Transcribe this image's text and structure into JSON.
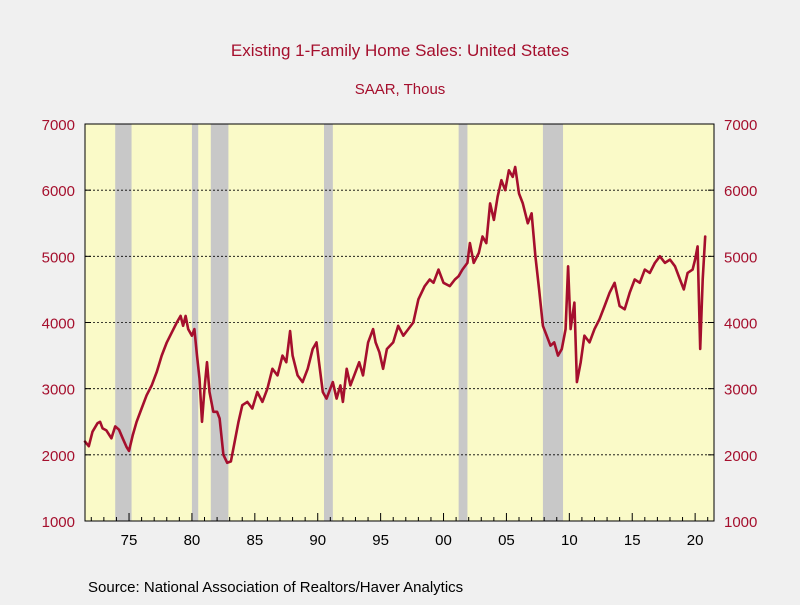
{
  "chart_data": {
    "type": "line",
    "title": "Existing 1-Family Home Sales: United States",
    "subtitle": "SAAR, Thous",
    "source": "Source:  National Association of Realtors/Haver Analytics",
    "xlim": [
      1971.5,
      2021.5
    ],
    "ylim": [
      1000,
      7000
    ],
    "x_ticks": [
      {
        "value": 1975,
        "label": "75"
      },
      {
        "value": 1980,
        "label": "80"
      },
      {
        "value": 1985,
        "label": "85"
      },
      {
        "value": 1990,
        "label": "90"
      },
      {
        "value": 1995,
        "label": "95"
      },
      {
        "value": 2000,
        "label": "00"
      },
      {
        "value": 2005,
        "label": "05"
      },
      {
        "value": 2010,
        "label": "10"
      },
      {
        "value": 2015,
        "label": "15"
      },
      {
        "value": 2020,
        "label": "20"
      }
    ],
    "y_ticks": [
      1000,
      2000,
      3000,
      4000,
      5000,
      6000,
      7000
    ],
    "y_axis_both_sides": true,
    "horizontal_grid": true,
    "grid_style": "dashed",
    "recession_shading": [
      [
        1973.9,
        1975.2
      ],
      [
        1980.0,
        1980.5
      ],
      [
        1981.5,
        1982.9
      ],
      [
        1990.5,
        1991.2
      ],
      [
        2001.2,
        2001.9
      ],
      [
        2007.9,
        2009.5
      ]
    ],
    "colors": {
      "line": "#a50f2d",
      "text": "#a50f2d",
      "plot_background": "#fafac8",
      "recession": "#c8c8c8",
      "page_background": "#f0f0f0"
    },
    "series": [
      {
        "points": [
          [
            1971.5,
            2200
          ],
          [
            1971.8,
            2130
          ],
          [
            1972.1,
            2350
          ],
          [
            1972.5,
            2480
          ],
          [
            1972.7,
            2500
          ],
          [
            1972.9,
            2400
          ],
          [
            1973.2,
            2370
          ],
          [
            1973.6,
            2250
          ],
          [
            1973.9,
            2430
          ],
          [
            1974.2,
            2380
          ],
          [
            1974.5,
            2250
          ],
          [
            1974.8,
            2120
          ],
          [
            1975.0,
            2060
          ],
          [
            1975.3,
            2300
          ],
          [
            1975.6,
            2500
          ],
          [
            1976.0,
            2700
          ],
          [
            1976.4,
            2900
          ],
          [
            1976.8,
            3050
          ],
          [
            1977.2,
            3250
          ],
          [
            1977.6,
            3500
          ],
          [
            1978.0,
            3700
          ],
          [
            1978.4,
            3850
          ],
          [
            1978.8,
            4000
          ],
          [
            1979.1,
            4100
          ],
          [
            1979.3,
            3950
          ],
          [
            1979.5,
            4100
          ],
          [
            1979.7,
            3900
          ],
          [
            1980.0,
            3800
          ],
          [
            1980.2,
            3900
          ],
          [
            1980.4,
            3500
          ],
          [
            1980.6,
            3150
          ],
          [
            1980.8,
            2500
          ],
          [
            1981.0,
            3000
          ],
          [
            1981.2,
            3400
          ],
          [
            1981.4,
            2950
          ],
          [
            1981.7,
            2650
          ],
          [
            1982.0,
            2650
          ],
          [
            1982.2,
            2550
          ],
          [
            1982.5,
            2000
          ],
          [
            1982.8,
            1880
          ],
          [
            1983.1,
            1900
          ],
          [
            1983.4,
            2200
          ],
          [
            1983.7,
            2500
          ],
          [
            1984.0,
            2750
          ],
          [
            1984.4,
            2800
          ],
          [
            1984.8,
            2700
          ],
          [
            1985.2,
            2950
          ],
          [
            1985.6,
            2800
          ],
          [
            1986.0,
            3000
          ],
          [
            1986.4,
            3300
          ],
          [
            1986.8,
            3200
          ],
          [
            1987.2,
            3500
          ],
          [
            1987.5,
            3400
          ],
          [
            1987.8,
            3870
          ],
          [
            1988.0,
            3500
          ],
          [
            1988.4,
            3200
          ],
          [
            1988.8,
            3100
          ],
          [
            1989.2,
            3300
          ],
          [
            1989.6,
            3600
          ],
          [
            1989.9,
            3700
          ],
          [
            1990.1,
            3400
          ],
          [
            1990.4,
            2950
          ],
          [
            1990.7,
            2850
          ],
          [
            1991.0,
            3000
          ],
          [
            1991.2,
            3100
          ],
          [
            1991.5,
            2850
          ],
          [
            1991.8,
            3050
          ],
          [
            1992.0,
            2800
          ],
          [
            1992.3,
            3300
          ],
          [
            1992.6,
            3050
          ],
          [
            1992.9,
            3200
          ],
          [
            1993.3,
            3400
          ],
          [
            1993.6,
            3200
          ],
          [
            1994.0,
            3700
          ],
          [
            1994.4,
            3900
          ],
          [
            1994.6,
            3700
          ],
          [
            1994.9,
            3550
          ],
          [
            1995.2,
            3300
          ],
          [
            1995.5,
            3600
          ],
          [
            1996.0,
            3700
          ],
          [
            1996.4,
            3950
          ],
          [
            1996.8,
            3800
          ],
          [
            1997.2,
            3900
          ],
          [
            1997.6,
            4000
          ],
          [
            1998.0,
            4350
          ],
          [
            1998.5,
            4550
          ],
          [
            1998.9,
            4650
          ],
          [
            1999.2,
            4600
          ],
          [
            1999.6,
            4800
          ],
          [
            2000.0,
            4600
          ],
          [
            2000.5,
            4550
          ],
          [
            2000.9,
            4650
          ],
          [
            2001.2,
            4700
          ],
          [
            2001.5,
            4800
          ],
          [
            2001.9,
            4900
          ],
          [
            2002.1,
            5200
          ],
          [
            2002.4,
            4900
          ],
          [
            2002.8,
            5050
          ],
          [
            2003.1,
            5300
          ],
          [
            2003.4,
            5200
          ],
          [
            2003.7,
            5800
          ],
          [
            2004.0,
            5550
          ],
          [
            2004.3,
            5900
          ],
          [
            2004.6,
            6150
          ],
          [
            2004.9,
            6000
          ],
          [
            2005.2,
            6300
          ],
          [
            2005.5,
            6200
          ],
          [
            2005.7,
            6350
          ],
          [
            2006.0,
            5950
          ],
          [
            2006.3,
            5800
          ],
          [
            2006.7,
            5500
          ],
          [
            2007.0,
            5650
          ],
          [
            2007.3,
            5000
          ],
          [
            2007.6,
            4500
          ],
          [
            2007.9,
            3950
          ],
          [
            2008.2,
            3800
          ],
          [
            2008.5,
            3650
          ],
          [
            2008.8,
            3700
          ],
          [
            2009.1,
            3500
          ],
          [
            2009.4,
            3600
          ],
          [
            2009.7,
            3900
          ],
          [
            2009.9,
            4850
          ],
          [
            2010.1,
            3900
          ],
          [
            2010.4,
            4300
          ],
          [
            2010.6,
            3100
          ],
          [
            2010.9,
            3400
          ],
          [
            2011.2,
            3800
          ],
          [
            2011.6,
            3700
          ],
          [
            2012.0,
            3900
          ],
          [
            2012.4,
            4050
          ],
          [
            2012.8,
            4250
          ],
          [
            2013.2,
            4450
          ],
          [
            2013.6,
            4600
          ],
          [
            2014.0,
            4250
          ],
          [
            2014.4,
            4200
          ],
          [
            2014.8,
            4450
          ],
          [
            2015.2,
            4650
          ],
          [
            2015.6,
            4600
          ],
          [
            2016.0,
            4800
          ],
          [
            2016.4,
            4750
          ],
          [
            2016.8,
            4900
          ],
          [
            2017.2,
            5000
          ],
          [
            2017.6,
            4900
          ],
          [
            2018.0,
            4950
          ],
          [
            2018.4,
            4850
          ],
          [
            2018.8,
            4650
          ],
          [
            2019.1,
            4500
          ],
          [
            2019.4,
            4750
          ],
          [
            2019.8,
            4800
          ],
          [
            2020.0,
            4950
          ],
          [
            2020.2,
            5150
          ],
          [
            2020.4,
            3600
          ],
          [
            2020.6,
            4650
          ],
          [
            2020.8,
            5300
          ]
        ]
      }
    ]
  }
}
